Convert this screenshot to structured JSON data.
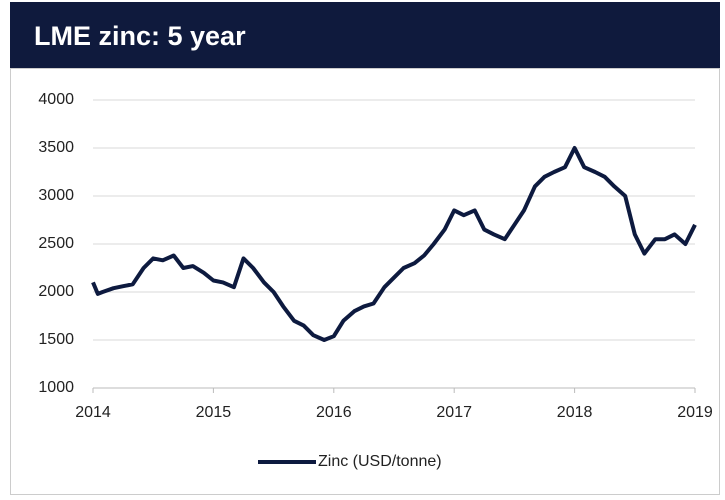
{
  "chart_data": {
    "type": "line",
    "title": "LME zinc: 5 year",
    "x": [
      2014.0,
      2014.04,
      2014.08,
      2014.17,
      2014.25,
      2014.33,
      2014.42,
      2014.5,
      2014.58,
      2014.67,
      2014.75,
      2014.83,
      2014.92,
      2015.0,
      2015.08,
      2015.17,
      2015.25,
      2015.33,
      2015.42,
      2015.5,
      2015.58,
      2015.67,
      2015.75,
      2015.83,
      2015.92,
      2016.0,
      2016.08,
      2016.17,
      2016.25,
      2016.33,
      2016.42,
      2016.5,
      2016.58,
      2016.67,
      2016.75,
      2016.83,
      2016.92,
      2017.0,
      2017.08,
      2017.17,
      2017.25,
      2017.33,
      2017.42,
      2017.5,
      2017.58,
      2017.67,
      2017.75,
      2017.83,
      2017.92,
      2018.0,
      2018.08,
      2018.17,
      2018.25,
      2018.33,
      2018.42,
      2018.5,
      2018.58,
      2018.67,
      2018.75,
      2018.83,
      2018.92,
      2019.0
    ],
    "series": [
      {
        "name": "Zinc (USD/tonne)",
        "color": "#0d1a3f",
        "values": [
          2100,
          1980,
          2000,
          2040,
          2060,
          2080,
          2250,
          2350,
          2330,
          2380,
          2250,
          2270,
          2200,
          2120,
          2100,
          2050,
          2350,
          2250,
          2100,
          2000,
          1850,
          1700,
          1650,
          1550,
          1500,
          1540,
          1700,
          1800,
          1850,
          1880,
          2050,
          2150,
          2250,
          2300,
          2380,
          2500,
          2650,
          2850,
          2800,
          2850,
          2650,
          2600,
          2550,
          2700,
          2850,
          3100,
          3200,
          3250,
          3300,
          3500,
          3300,
          3250,
          3200,
          3100,
          3000,
          2600,
          2400,
          2550,
          2550,
          2600,
          2500,
          2700
        ]
      }
    ],
    "xlim": [
      2014,
      2019
    ],
    "xticks": [
      2014,
      2015,
      2016,
      2017,
      2018,
      2019
    ],
    "ylim": [
      1000,
      4000
    ],
    "yticks": [
      1000,
      1500,
      2000,
      2500,
      3000,
      3500,
      4000
    ],
    "grid": true
  }
}
